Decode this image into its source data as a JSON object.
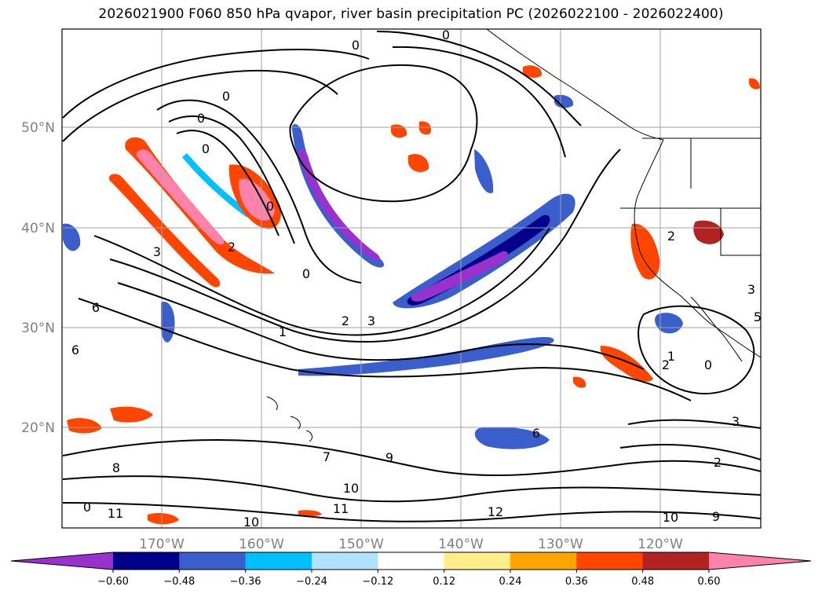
{
  "title": "2026021900 F060 850 hPa qvapor, river basin precipitation PC (2026022100 - 2026022400)",
  "longitude_labels": [
    "170°W",
    "160°W",
    "150°W",
    "140°W",
    "130°W",
    "120°W"
  ],
  "latitude_labels": [
    "50°N",
    "40°N",
    "30°N",
    "20°N"
  ],
  "colorbar": {
    "tick_labels": [
      "−0.60",
      "−0.48",
      "−0.36",
      "−0.24",
      "−0.12",
      "0.12",
      "0.24",
      "0.36",
      "0.48",
      "0.60"
    ],
    "colors": [
      "#9932cc",
      "#00008b",
      "#3a5fcd",
      "#00bfff",
      "#b0e2ff",
      "#ffffff",
      "#ffec8b",
      "#ffa500",
      "#ff4500",
      "#b22222",
      "#ff82ab"
    ],
    "extend": "both"
  },
  "contour_labels": [
    "0",
    "0",
    "0",
    "0",
    "0",
    "0",
    "0",
    "1",
    "2",
    "3",
    "2",
    "3",
    "6",
    "6",
    "7",
    "8",
    "9",
    "10",
    "10",
    "11",
    "11",
    "12",
    "10",
    "9",
    "3",
    "2",
    "1",
    "2",
    "3",
    "5",
    "0",
    "6",
    "2",
    "0"
  ],
  "colors": {
    "contour": "#000000",
    "grid": "#a0a0a0",
    "coastline": "#000000",
    "label": "#808080"
  }
}
